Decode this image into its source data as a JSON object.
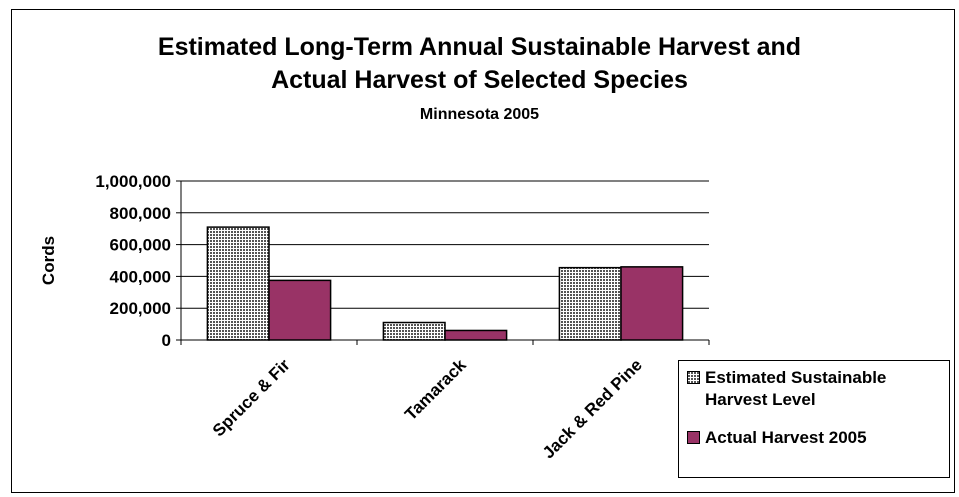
{
  "chart_data": {
    "type": "bar",
    "title_lines": [
      "Estimated Long-Term Annual Sustainable Harvest and",
      "Actual Harvest of Selected Species"
    ],
    "subtitle": "Minnesota 2005",
    "ylabel": "Cords",
    "xlabel": "",
    "categories": [
      "Spruce & Fir",
      "Tamarack",
      "Jack & Red Pine"
    ],
    "series": [
      {
        "name": "Estimated  Sustainable Harvest Level",
        "values": [
          710000,
          110000,
          455000
        ],
        "color": "#d9d9d9",
        "pattern": "dotted-grid"
      },
      {
        "name": "Actual Harvest  2005",
        "values": [
          375000,
          60000,
          460000
        ],
        "color": "#993366",
        "pattern": "solid"
      }
    ],
    "ylim": [
      0,
      1000000
    ],
    "yticks": [
      0,
      200000,
      400000,
      600000,
      800000,
      1000000
    ],
    "ytick_labels": [
      "0",
      "200,000",
      "400,000",
      "600,000",
      "800,000",
      "1,000,000"
    ],
    "grid": true,
    "legend_position": "bottom-right"
  },
  "legend": {
    "items": [
      {
        "label": "Estimated  Sustainable Harvest Level"
      },
      {
        "label": "Actual Harvest  2005"
      }
    ]
  }
}
